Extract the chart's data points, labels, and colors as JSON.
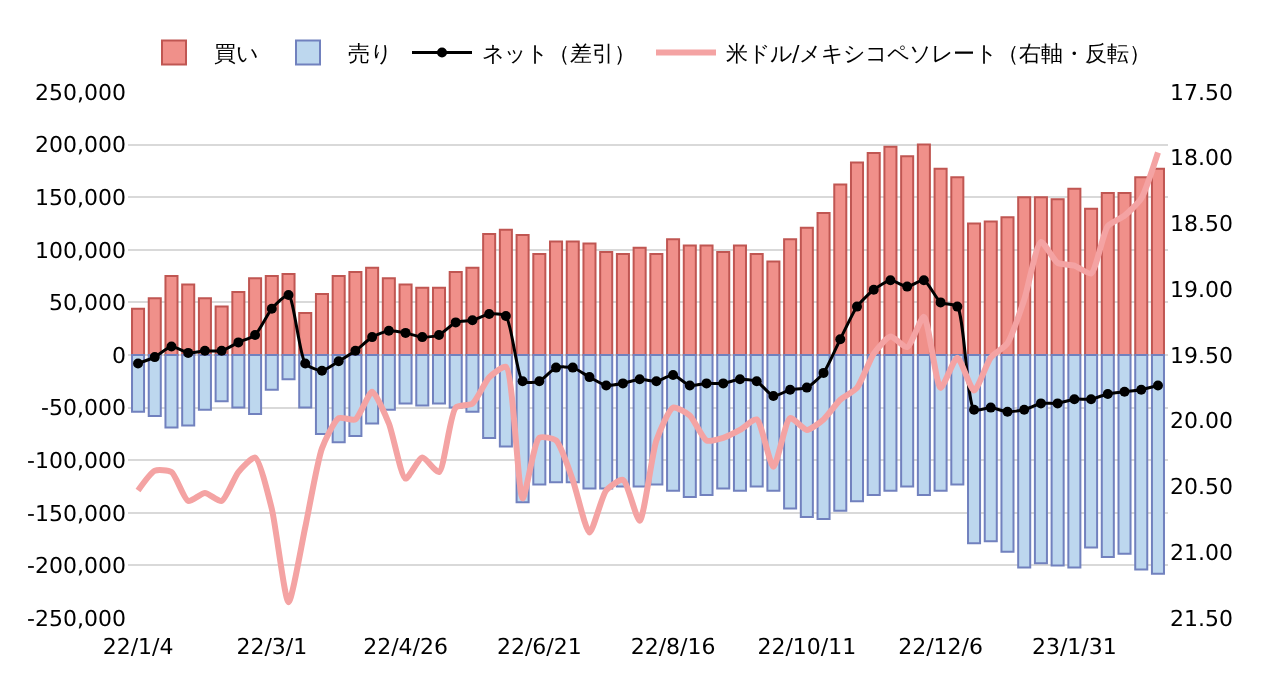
{
  "chart_data": {
    "type": "bar",
    "categories": [
      "22/1/4",
      null,
      null,
      null,
      null,
      null,
      null,
      null,
      "22/3/1",
      null,
      null,
      null,
      null,
      null,
      null,
      null,
      "22/4/26",
      null,
      null,
      null,
      null,
      null,
      null,
      null,
      "22/6/21",
      null,
      null,
      null,
      null,
      null,
      null,
      null,
      "22/8/16",
      null,
      null,
      null,
      null,
      null,
      null,
      null,
      "22/10/11",
      null,
      null,
      null,
      null,
      null,
      null,
      null,
      "22/12/6",
      null,
      null,
      null,
      null,
      null,
      null,
      null,
      "23/1/31",
      null,
      null,
      null,
      null,
      null
    ],
    "series": [
      {
        "name": "買い",
        "color": "#f0908a",
        "values": [
          44000,
          54000,
          75000,
          67000,
          54000,
          46000,
          60000,
          73000,
          75000,
          77000,
          40000,
          58000,
          75000,
          79000,
          83000,
          73000,
          67000,
          64000,
          64000,
          79000,
          83000,
          115000,
          119000,
          114000,
          96000,
          108000,
          108000,
          106000,
          98000,
          96000,
          102000,
          96000,
          110000,
          104000,
          104000,
          98000,
          104000,
          96000,
          89000,
          110000,
          121000,
          135000,
          162000,
          183000,
          192000,
          198000,
          189000,
          200000,
          177000,
          169000,
          125000,
          127000,
          131000,
          150000,
          150000,
          148000,
          158000,
          139000,
          154000,
          154000,
          169000,
          177000
        ]
      },
      {
        "name": "売り",
        "color": "#bdd7ee",
        "values": [
          -54000,
          -58000,
          -69000,
          -67000,
          -52000,
          -44000,
          -50000,
          -56000,
          -33000,
          -23000,
          -50000,
          -75000,
          -83000,
          -77000,
          -65000,
          -52000,
          -46000,
          -48000,
          -46000,
          -50000,
          -54000,
          -79000,
          -87000,
          -140000,
          -123000,
          -121000,
          -121000,
          -127000,
          -127000,
          -125000,
          -125000,
          -123000,
          -129000,
          -135000,
          -133000,
          -127000,
          -129000,
          -125000,
          -129000,
          -146000,
          -154000,
          -156000,
          -148000,
          -139000,
          -133000,
          -129000,
          -125000,
          -133000,
          -129000,
          -123000,
          -179000,
          -177000,
          -187000,
          -202000,
          -198000,
          -200000,
          -202000,
          -183000,
          -192000,
          -189000,
          -204000,
          -208000
        ]
      },
      {
        "name": "ネット（差引）",
        "type": "line",
        "marker": "circle",
        "color": "#000000",
        "values": [
          -8000,
          -2000,
          8000,
          2000,
          4000,
          4000,
          12000,
          19000,
          44000,
          57000,
          -8000,
          -15000,
          -6000,
          4000,
          17000,
          23000,
          21000,
          17000,
          19000,
          31000,
          33000,
          39000,
          37000,
          -25000,
          -25000,
          -12000,
          -12000,
          -21000,
          -29000,
          -27000,
          -23000,
          -25000,
          -19000,
          -29000,
          -27000,
          -27000,
          -23000,
          -25000,
          -39000,
          -33000,
          -31000,
          -17000,
          15000,
          46000,
          62000,
          71000,
          65000,
          71000,
          50000,
          46000,
          -52000,
          -50000,
          -54000,
          -52000,
          -46000,
          -46000,
          -42000,
          -42000,
          -37000,
          -35000,
          -33000,
          -29000
        ]
      },
      {
        "name": "米ドル/メキシコペソレート（右軸・反転）",
        "type": "line",
        "axis": "y2",
        "color": "#f4a3a3",
        "values": [
          20.53,
          20.38,
          20.39,
          20.61,
          20.55,
          20.61,
          20.39,
          20.28,
          20.67,
          21.38,
          20.81,
          20.21,
          19.98,
          19.99,
          19.78,
          20.02,
          20.44,
          20.28,
          20.39,
          19.9,
          19.87,
          19.67,
          19.59,
          20.59,
          20.13,
          20.15,
          20.45,
          20.85,
          20.53,
          20.45,
          20.76,
          20.15,
          19.9,
          19.96,
          20.15,
          20.13,
          20.07,
          19.99,
          20.35,
          19.98,
          20.07,
          19.99,
          19.84,
          19.75,
          19.49,
          19.36,
          19.44,
          19.21,
          19.75,
          19.52,
          19.77,
          19.52,
          19.41,
          19.08,
          18.64,
          18.8,
          18.82,
          18.88,
          18.52,
          18.44,
          18.31,
          17.96
        ]
      }
    ],
    "ylim": [
      -250000,
      250000
    ],
    "yticks": [
      {
        "value": -250000,
        "label": "-250,000"
      },
      {
        "value": -200000,
        "label": "-200,000"
      },
      {
        "value": -150000,
        "label": "-150,000"
      },
      {
        "value": -100000,
        "label": "-100,000"
      },
      {
        "value": -50000,
        "label": "-50,000"
      },
      0,
      {
        "value": 50000,
        "label": "50,000"
      },
      {
        "value": 100000,
        "label": "100,000"
      },
      {
        "value": 150000,
        "label": "150,000"
      },
      {
        "value": 200000,
        "label": "200,000"
      },
      {
        "value": 250000,
        "label": "250,000"
      }
    ],
    "y2lim": [
      21.5,
      17.5
    ],
    "y2ticks": [
      {
        "value": 17.5,
        "label": "17.50"
      },
      {
        "value": 18,
        "label": "18.00"
      },
      {
        "value": 18.5,
        "label": "18.50"
      },
      {
        "value": 19,
        "label": "19.00"
      },
      {
        "value": 19.5,
        "label": "19.50"
      },
      {
        "value": 20,
        "label": "20.00"
      },
      {
        "value": 20.5,
        "label": "20.50"
      },
      {
        "value": 21,
        "label": "21.00"
      },
      {
        "value": 21.5,
        "label": "21.50"
      }
    ],
    "stacked": true,
    "grid": "y",
    "legend": "top"
  }
}
